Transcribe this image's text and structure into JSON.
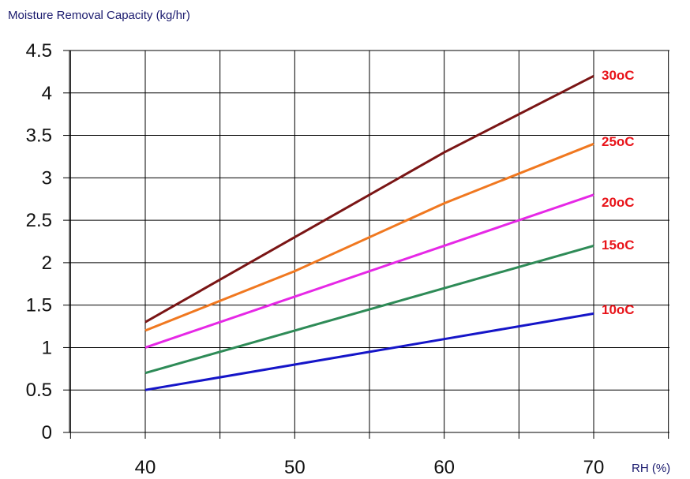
{
  "chart_data": {
    "type": "line",
    "title": "",
    "ylabel": "Moisture Removal Capacity (kg/hr)",
    "xlabel": "RH (%)",
    "x_ticks": [
      40,
      50,
      60,
      70
    ],
    "y_ticks": [
      "0",
      "0.5",
      "1",
      "1.5",
      "2",
      "2.5",
      "3",
      "3.5",
      "4",
      "4.5"
    ],
    "ylim": [
      0,
      4.5
    ],
    "grid": true,
    "label_color": "#e8141a",
    "series": [
      {
        "name": "30oC",
        "color": "#7a1515",
        "x": [
          40,
          50,
          60,
          70
        ],
        "y": [
          1.3,
          2.3,
          3.3,
          4.2
        ]
      },
      {
        "name": "25oC",
        "color": "#f07820",
        "x": [
          40,
          50,
          60,
          70
        ],
        "y": [
          1.2,
          1.9,
          2.7,
          3.4
        ]
      },
      {
        "name": "20oC",
        "color": "#e628e6",
        "x": [
          40,
          50,
          60,
          70
        ],
        "y": [
          1.0,
          1.6,
          2.2,
          2.8
        ]
      },
      {
        "name": "15oC",
        "color": "#2e8b57",
        "x": [
          40,
          50,
          60,
          70
        ],
        "y": [
          0.7,
          1.2,
          1.7,
          2.2
        ]
      },
      {
        "name": "10oC",
        "color": "#1515c8",
        "x": [
          40,
          50,
          60,
          70
        ],
        "y": [
          0.5,
          0.8,
          1.1,
          1.4
        ]
      }
    ]
  }
}
